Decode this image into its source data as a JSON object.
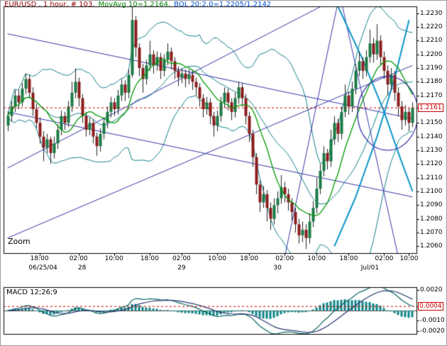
{
  "title": {
    "instrument": "EUR/USD , 1 hour, # 103.",
    "movavg": "MovAvg 10=1.2164,",
    "bollinger": "BOL 20:2.0=1.2205/1.2142",
    "instrument_color": "#900000",
    "movavg_color": "#008000",
    "bollinger_color": "#0050d0"
  },
  "zoom_label": "Zoom",
  "macd_label": "MACD 12;26;9",
  "chart_data": {
    "type": "candlestick",
    "instrument": "EUR/USD",
    "timeframe": "1 hour",
    "indicators": {
      "movavg_period": 10,
      "movavg_value": 1.2164,
      "bollinger_period": 20,
      "bollinger_dev": 2.0,
      "bollinger_upper": 1.2205,
      "bollinger_lower": 1.2142,
      "macd_params": [
        12,
        26,
        9
      ]
    },
    "price_axis": {
      "min": 1.2055,
      "max": 1.2235,
      "step": 0.001,
      "current_price": 1.2161,
      "labels": [
        {
          "text": "1.2230",
          "value": 1.223
        },
        {
          "text": "1.2220",
          "value": 1.222
        },
        {
          "text": "1.2210",
          "value": 1.221
        },
        {
          "text": "1.2200",
          "value": 1.22
        },
        {
          "text": "1.2190",
          "value": 1.219
        },
        {
          "text": "1.2180",
          "value": 1.218
        },
        {
          "text": "1.2170",
          "value": 1.217
        },
        {
          "text": "1.2161",
          "value": 1.2161,
          "current": true
        },
        {
          "text": "1.2150",
          "value": 1.215
        },
        {
          "text": "1.2140",
          "value": 1.214
        },
        {
          "text": "1.2130",
          "value": 1.213
        },
        {
          "text": "1.2120",
          "value": 1.212
        },
        {
          "text": "1.2110",
          "value": 1.211
        },
        {
          "text": "1.2100",
          "value": 1.21
        },
        {
          "text": "1.2090",
          "value": 1.209
        },
        {
          "text": "1.2080",
          "value": 1.208
        },
        {
          "text": "1.2070",
          "value": 1.207
        },
        {
          "text": "1.2060",
          "value": 1.206
        }
      ]
    },
    "time_axis": {
      "time_labels": [
        {
          "text": "18:00",
          "bar": 9
        },
        {
          "text": "02:00",
          "bar": 20
        },
        {
          "text": "10:00",
          "bar": 30
        },
        {
          "text": "18:00",
          "bar": 40
        },
        {
          "text": "02:00",
          "bar": 49
        },
        {
          "text": "10:00",
          "bar": 59
        },
        {
          "text": "18:00",
          "bar": 68
        },
        {
          "text": "02:00",
          "bar": 78
        },
        {
          "text": "10:00",
          "bar": 87
        },
        {
          "text": "18:00",
          "bar": 96
        },
        {
          "text": "02:00",
          "bar": 106
        },
        {
          "text": "10:00",
          "bar": 113
        }
      ],
      "date_labels": [
        {
          "text": "06/25/04",
          "bar": 10
        },
        {
          "text": "28",
          "bar": 21
        },
        {
          "text": "29",
          "bar": 49
        },
        {
          "text": "30",
          "bar": 76
        },
        {
          "text": "Jul/01",
          "bar": 102
        }
      ]
    },
    "candles": [
      [
        1.2148,
        1.2158,
        1.2144,
        1.2155
      ],
      [
        1.2155,
        1.2166,
        1.2151,
        1.2162
      ],
      [
        1.2162,
        1.2174,
        1.2158,
        1.217
      ],
      [
        1.217,
        1.2174,
        1.216,
        1.2165
      ],
      [
        1.2165,
        1.2179,
        1.2162,
        1.2175
      ],
      [
        1.2175,
        1.2186,
        1.2171,
        1.2182
      ],
      [
        1.2182,
        1.2185,
        1.2168,
        1.2172
      ],
      [
        1.2172,
        1.2176,
        1.2155,
        1.216
      ],
      [
        1.216,
        1.2164,
        1.2146,
        1.215
      ],
      [
        1.215,
        1.2154,
        1.2135,
        1.214
      ],
      [
        1.214,
        1.2144,
        1.2122,
        1.2132
      ],
      [
        1.2132,
        1.2142,
        1.2128,
        1.2138
      ],
      [
        1.2138,
        1.214,
        1.212,
        1.2128
      ],
      [
        1.2128,
        1.214,
        1.2124,
        1.2135
      ],
      [
        1.2135,
        1.2149,
        1.2131,
        1.2145
      ],
      [
        1.2145,
        1.2159,
        1.2141,
        1.2155
      ],
      [
        1.2155,
        1.2158,
        1.2145,
        1.215
      ],
      [
        1.215,
        1.2166,
        1.2147,
        1.2162
      ],
      [
        1.2162,
        1.218,
        1.2158,
        1.2172
      ],
      [
        1.2172,
        1.219,
        1.2168,
        1.218
      ],
      [
        1.218,
        1.2183,
        1.2162,
        1.2168
      ],
      [
        1.2168,
        1.2171,
        1.215,
        1.2155
      ],
      [
        1.2155,
        1.2158,
        1.214,
        1.2145
      ],
      [
        1.2145,
        1.2154,
        1.2141,
        1.215
      ],
      [
        1.215,
        1.2153,
        1.2135,
        1.214
      ],
      [
        1.214,
        1.2143,
        1.2126,
        1.2133
      ],
      [
        1.2133,
        1.2146,
        1.2129,
        1.2142
      ],
      [
        1.2142,
        1.2154,
        1.2138,
        1.215
      ],
      [
        1.215,
        1.2162,
        1.2146,
        1.2158
      ],
      [
        1.2158,
        1.2169,
        1.2154,
        1.2165
      ],
      [
        1.2165,
        1.2168,
        1.2155,
        1.216
      ],
      [
        1.216,
        1.2174,
        1.2156,
        1.217
      ],
      [
        1.217,
        1.2182,
        1.2166,
        1.2178
      ],
      [
        1.2178,
        1.2181,
        1.2166,
        1.2172
      ],
      [
        1.2172,
        1.2189,
        1.2168,
        1.2185
      ],
      [
        1.2185,
        1.2236,
        1.2183,
        1.2225
      ],
      [
        1.2225,
        1.2228,
        1.2198,
        1.2205
      ],
      [
        1.2205,
        1.2208,
        1.2184,
        1.219
      ],
      [
        1.219,
        1.2193,
        1.2172,
        1.2182
      ],
      [
        1.2182,
        1.2196,
        1.2178,
        1.2192
      ],
      [
        1.2192,
        1.221,
        1.2188,
        1.22
      ],
      [
        1.22,
        1.2203,
        1.2186,
        1.2192
      ],
      [
        1.2192,
        1.2202,
        1.2188,
        1.2198
      ],
      [
        1.2198,
        1.2201,
        1.2182,
        1.2188
      ],
      [
        1.2188,
        1.22,
        1.2184,
        1.2196
      ],
      [
        1.2196,
        1.2208,
        1.2192,
        1.2202
      ],
      [
        1.2202,
        1.2205,
        1.2189,
        1.2195
      ],
      [
        1.2195,
        1.2198,
        1.2182,
        1.2188
      ],
      [
        1.2188,
        1.2191,
        1.2177,
        1.2183
      ],
      [
        1.2183,
        1.219,
        1.2179,
        1.2186
      ],
      [
        1.2186,
        1.2189,
        1.2176,
        1.2182
      ],
      [
        1.2182,
        1.2189,
        1.2178,
        1.2185
      ],
      [
        1.2185,
        1.2188,
        1.2174,
        1.218
      ],
      [
        1.218,
        1.2183,
        1.217,
        1.2176
      ],
      [
        1.2176,
        1.2179,
        1.2162,
        1.2168
      ],
      [
        1.2168,
        1.2171,
        1.2154,
        1.216
      ],
      [
        1.216,
        1.2169,
        1.2156,
        1.2165
      ],
      [
        1.2165,
        1.2168,
        1.2149,
        1.2155
      ],
      [
        1.2155,
        1.2158,
        1.214,
        1.2148
      ],
      [
        1.2148,
        1.2159,
        1.2144,
        1.2155
      ],
      [
        1.2155,
        1.2169,
        1.2151,
        1.2165
      ],
      [
        1.2165,
        1.2176,
        1.2161,
        1.2172
      ],
      [
        1.2172,
        1.2175,
        1.2159,
        1.2165
      ],
      [
        1.2165,
        1.2168,
        1.2152,
        1.2158
      ],
      [
        1.2158,
        1.2172,
        1.2154,
        1.2168
      ],
      [
        1.2168,
        1.218,
        1.2164,
        1.2176
      ],
      [
        1.2176,
        1.2179,
        1.2162,
        1.2168
      ],
      [
        1.2168,
        1.2171,
        1.2149,
        1.2155
      ],
      [
        1.2155,
        1.2158,
        1.2136,
        1.2142
      ],
      [
        1.2142,
        1.2145,
        1.2118,
        1.2125
      ],
      [
        1.2125,
        1.2128,
        1.2098,
        1.2105
      ],
      [
        1.2105,
        1.2108,
        1.2085,
        1.2092
      ],
      [
        1.2092,
        1.2104,
        1.2088,
        1.2098
      ],
      [
        1.2098,
        1.2101,
        1.2078,
        1.2088
      ],
      [
        1.2088,
        1.2092,
        1.2072,
        1.208
      ],
      [
        1.208,
        1.2095,
        1.2076,
        1.209
      ],
      [
        1.209,
        1.21,
        1.2084,
        1.2095
      ],
      [
        1.2095,
        1.2112,
        1.2091,
        1.2103
      ],
      [
        1.2103,
        1.2107,
        1.2092,
        1.2098
      ],
      [
        1.2098,
        1.2102,
        1.2086,
        1.2092
      ],
      [
        1.2092,
        1.2095,
        1.2079,
        1.2085
      ],
      [
        1.2085,
        1.2088,
        1.207,
        1.2076
      ],
      [
        1.2076,
        1.208,
        1.2062,
        1.2068
      ],
      [
        1.2068,
        1.2078,
        1.2063,
        1.2072
      ],
      [
        1.2072,
        1.2076,
        1.2058,
        1.2066
      ],
      [
        1.2066,
        1.2084,
        1.2062,
        1.2078
      ],
      [
        1.2078,
        1.2093,
        1.2074,
        1.2088
      ],
      [
        1.2088,
        1.211,
        1.2084,
        1.2102
      ],
      [
        1.2102,
        1.212,
        1.2098,
        1.2115
      ],
      [
        1.2115,
        1.2133,
        1.2111,
        1.2128
      ],
      [
        1.2128,
        1.2131,
        1.2116,
        1.2122
      ],
      [
        1.2122,
        1.2145,
        1.2118,
        1.2138
      ],
      [
        1.2138,
        1.2155,
        1.2134,
        1.215
      ],
      [
        1.215,
        1.2153,
        1.2136,
        1.2142
      ],
      [
        1.2142,
        1.2162,
        1.2138,
        1.2158
      ],
      [
        1.2158,
        1.2178,
        1.2154,
        1.217
      ],
      [
        1.217,
        1.2173,
        1.2156,
        1.2162
      ],
      [
        1.2162,
        1.218,
        1.2158,
        1.2175
      ],
      [
        1.2175,
        1.2193,
        1.2171,
        1.2188
      ],
      [
        1.2188,
        1.2202,
        1.2184,
        1.2195
      ],
      [
        1.2195,
        1.2198,
        1.2182,
        1.2188
      ],
      [
        1.2188,
        1.2203,
        1.2184,
        1.2198
      ],
      [
        1.2198,
        1.2218,
        1.2194,
        1.2208
      ],
      [
        1.2208,
        1.2212,
        1.2194,
        1.22
      ],
      [
        1.22,
        1.2222,
        1.2196,
        1.221
      ],
      [
        1.221,
        1.2214,
        1.2192,
        1.2198
      ],
      [
        1.2198,
        1.2202,
        1.2182,
        1.2188
      ],
      [
        1.2188,
        1.2192,
        1.217,
        1.2178
      ],
      [
        1.2178,
        1.219,
        1.2174,
        1.2185
      ],
      [
        1.2185,
        1.2188,
        1.2166,
        1.2172
      ],
      [
        1.2172,
        1.2176,
        1.2155,
        1.2162
      ],
      [
        1.2162,
        1.2166,
        1.2145,
        1.2152
      ],
      [
        1.2152,
        1.2163,
        1.2148,
        1.2158
      ],
      [
        1.2158,
        1.2161,
        1.2144,
        1.215
      ],
      [
        1.215,
        1.2165,
        1.2147,
        1.2161
      ]
    ],
    "overlays": {
      "trend_lines": [
        {
          "b1": 0,
          "p1": 1.2066,
          "b2": 114,
          "p2": 1.2192
        },
        {
          "b1": 0,
          "p1": 1.2117,
          "b2": 92,
          "p2": 1.224
        },
        {
          "b1": 78,
          "p1": 1.2052,
          "b2": 93,
          "p2": 1.2238
        },
        {
          "b1": 94,
          "p1": 1.2238,
          "b2": 110,
          "p2": 1.2052
        },
        {
          "b1": 0,
          "p1": 1.2215,
          "b2": 114,
          "p2": 1.2153
        },
        {
          "b1": 0,
          "p1": 1.2158,
          "b2": 114,
          "p2": 1.2096
        }
      ],
      "curves": [
        {
          "pts": [
            [
              93,
              1.2235
            ],
            [
              100,
              1.2196
            ],
            [
              106,
              1.2158
            ],
            [
              110,
              1.2128
            ],
            [
              114,
              1.21
            ]
          ],
          "width": 2
        },
        {
          "pts": [
            [
              92,
              1.206
            ],
            [
              98,
              1.2096
            ],
            [
              104,
              1.214
            ],
            [
              109,
              1.2183
            ],
            [
              113,
              1.2225
            ]
          ],
          "width": 2
        }
      ],
      "ellipse": {
        "bar": 107,
        "price": 1.2157,
        "rxBars": 8.5,
        "ryPrice": 0.0027
      }
    },
    "macd_axis": {
      "range": [
        -0.00228,
        0.00228
      ],
      "current_value": 0.0004,
      "labels": [
        {
          "text": "0.0020",
          "value": 0.002
        },
        {
          "text": "0.0004",
          "value": 0.0004,
          "current": true
        },
        {
          "text": "-0.0010",
          "value": -0.001
        },
        {
          "text": "-0.0020",
          "value": -0.002
        }
      ]
    },
    "colors": {
      "up": "#1a7a45",
      "down": "#8b1d1d",
      "wick": "#222222",
      "ma": "#009900",
      "band": "#12808a",
      "trend": "#3434a8",
      "curve": "#0b94c8",
      "current": "#cc0000",
      "hist": "#0d8585",
      "macd_line": "#0a6565",
      "signal_line": "#22356e",
      "border": "#000000"
    }
  }
}
